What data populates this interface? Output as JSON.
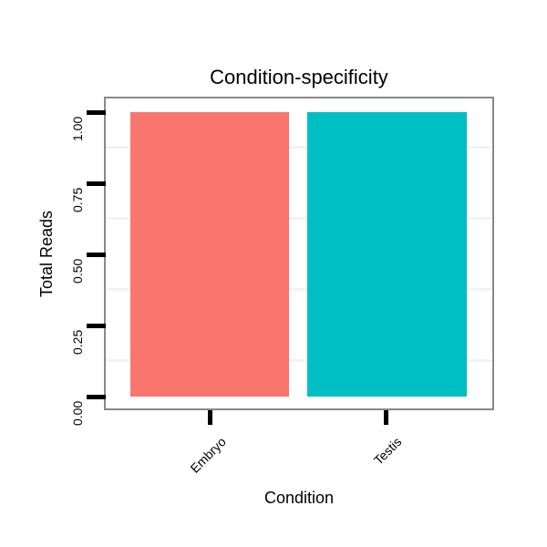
{
  "chart_data": {
    "type": "bar",
    "title": "Condition-specificity",
    "xlabel": "Condition",
    "ylabel": "Total Reads",
    "categories": [
      "Embryo",
      "Testis"
    ],
    "values": [
      1.0,
      1.0
    ],
    "bar_colors": [
      "#F8766D",
      "#00BFC4"
    ],
    "ylim": [
      0,
      1
    ],
    "ytick_labels": [
      "0.00",
      "0.25",
      "0.50",
      "0.75",
      "1.00"
    ],
    "legend": "none",
    "grid": "faint horizontal minor gridlines",
    "panel_border_color": "#898989",
    "tick_color": "#000000"
  }
}
